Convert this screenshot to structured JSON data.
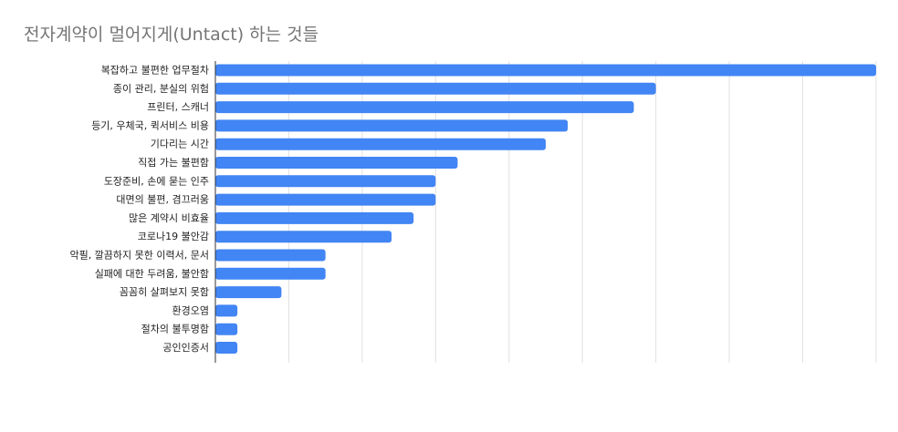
{
  "chart_data": {
    "type": "bar",
    "orientation": "horizontal",
    "title": "전자계약이 멀어지게(Untact) 하는 것들",
    "xlabel": "",
    "ylabel": "",
    "categories": [
      "복잡하고 불편한 업무절차",
      "종이 관리, 분실의 위험",
      "프린터, 스캐너",
      "등기, 우체국, 퀵서비스 비용",
      "기다리는 시간",
      "직접 가는 불편함",
      "도장준비, 손에 묻는 인주",
      "대면의 불편, 겸끄러움",
      "많은 계약시 비효율",
      "코로나19 불안감",
      "악필, 깔끔하지 못한 이력서, 문서",
      "실패에 대한 두려움, 불안함",
      "꼼꼼히 살펴보지 못함",
      "환경오염",
      "절차의 불투명함",
      "공인인증서"
    ],
    "values": [
      30,
      20,
      19,
      16,
      15,
      11,
      10,
      10,
      9,
      8,
      5,
      5,
      3,
      1,
      1,
      1
    ],
    "xlim": [
      0,
      30
    ],
    "gridlines": 9,
    "grid": true,
    "legend": "none",
    "bar_color": "#4285f4"
  }
}
